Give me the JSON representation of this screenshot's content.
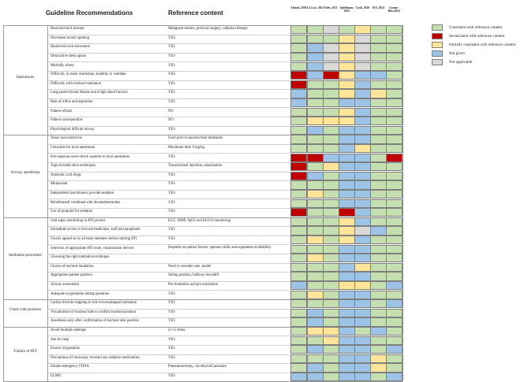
{
  "headers": {
    "guideline": "Guideline Recommendations",
    "reference": "Reference content",
    "authors": [
      "Ahmed, 2020",
      "J.A.Law, 2021",
      "Faley, 2021",
      "Apfelbaum, 2022",
      "Cook, 2020",
      "JSA, 2014",
      "Gomez-Rios,2024"
    ]
  },
  "colors": {
    "C": "#c6dfb1",
    "I": "#c00000",
    "P": "#ffe599",
    "N": "#9dc3e6",
    "A": "#d9d9d9"
  },
  "legend": [
    {
      "code": "C",
      "label": "Consistent with reference content"
    },
    {
      "code": "I",
      "label": "Inconsistent with reference content"
    },
    {
      "code": "P",
      "label": "Partially consistent with reference content"
    },
    {
      "code": "N",
      "label": "Not given"
    },
    {
      "code": "A",
      "label": "Not applicable"
    }
  ],
  "sections": [
    {
      "name": "Indications",
      "rows": [
        {
          "rec": "Head and neck disease",
          "ref": "Malignant tumors, previous surgery, radiation therapy",
          "cells": "CCACPCC"
        },
        {
          "rec": "Decreased mouth opening",
          "ref": "YES",
          "cells": "CCCPACC"
        },
        {
          "rec": "Restricted neck movement",
          "ref": "YES",
          "cells": "CNAPACC"
        },
        {
          "rec": "Obstructive sleep apnea",
          "ref": "YES",
          "cells": "CNAPACC"
        },
        {
          "rec": "Morbidly obese",
          "ref": "YES",
          "cells": "CNAPACC"
        },
        {
          "rec": "Difficulty in mask ventilation, inability to ventilate",
          "ref": "YES",
          "cells": "INIPNNC"
        },
        {
          "rec": "Difficulty with tracheal intubation",
          "ref": "YES",
          "cells": "ICCPNCC"
        },
        {
          "rec": "Lung parenchymal disease and a high shunt fraction",
          "ref": "YES",
          "cells": "NCCPNPC"
        },
        {
          "rec": "Risk of reflux and aspiration",
          "ref": "YES",
          "cells": "NCCNNCC"
        },
        {
          "rec": "Patient refusal",
          "ref": "NO",
          "cells": "CCCPNCC"
        },
        {
          "rec": "Patient uncooperative",
          "ref": "NO",
          "cells": "CPPPNCC"
        },
        {
          "rec": "Physiological difficult airway",
          "ref": "YES",
          "cells": "CNCNNCC"
        }
      ]
    },
    {
      "name": "Airway anesthesia",
      "rows": [
        {
          "rec": "Nasal vasoconstrictor",
          "ref": "Used prior to nasotracheal intubation",
          "cells": "CCCNNCC"
        },
        {
          "rec": "Lidocaine for local anesthesia",
          "ref": "Maximum dose 9 mg/kg",
          "cells": "CCCNPCC"
        },
        {
          "rec": "Percutaneous nerve block superior to local anesthesia",
          "ref": "YES",
          "cells": "IINNNCI"
        },
        {
          "rec": "Topical medication techniques",
          "ref": "Transtracheal injection, nebulization",
          "cells": "ICPNNCC"
        },
        {
          "rec": "Antisialic acid drugs",
          "ref": "YES",
          "cells": "INCNNCC"
        },
        {
          "rec": "Midazolam",
          "ref": "YES",
          "cells": "CCCNNCC"
        },
        {
          "rec": "Independent practitioners provide sedation",
          "ref": "YES",
          "cells": "CPCNNCC"
        },
        {
          "rec": "Remifentanil combined with dexmedetomidine",
          "ref": "YES",
          "cells": "CCCNNCC"
        },
        {
          "rec": "Use of propofol for sedation",
          "ref": "YES",
          "cells": "ICCINCC"
        }
      ]
    },
    {
      "name": "Intubation procedure",
      "rows": [
        {
          "rec": "vital signs monitoring in ATI process",
          "ref": "ECG, NIBP, SpO2 and EtCO2 monitoring",
          "cells": "CCCPNCC"
        },
        {
          "rec": "Immediate access to first-aid medicines, staff and equipment",
          "ref": "YES",
          "cells": "CCCPANC"
        },
        {
          "rec": "Clearly agreed to by all team members before starting ATI",
          "ref": "YES",
          "cells": "CPCPNCC"
        },
        {
          "rec": "Selection of appropriate ATI route, visualization devices",
          "ref": "Depends on patient factors, operator skills and equipment availability.",
          "cells": "CCCNNCC"
        },
        {
          "rec": "Choosing the right intubation technique",
          "ref": "",
          "cells": "CPCNNCC"
        },
        {
          "rec": "Choice of tracheal intubation",
          "ref": "Need to consider size, model",
          "cells": "CCCNPCC"
        },
        {
          "rec": "Appropriate patient position",
          "ref": "Sitting position, halfway downhill",
          "cells": "CCCNNCC"
        },
        {
          "rec": "Airway assessment",
          "ref": "Pre-intubation and pre-extubation",
          "cells": "NCCPPCN"
        },
        {
          "rec": "Adequate oxygenation during operation",
          "ref": "YES",
          "cells": "CPCNNCC"
        }
      ]
    },
    {
      "name": "Check tube position",
      "rows": [
        {
          "rec": "Carbon dioxide mapping to rule out esophageal intubation",
          "ref": "YES",
          "cells": "CCCNNCN"
        },
        {
          "rec": "Visualization of tracheal tube to confirm tracheal position",
          "ref": "YES",
          "cells": "CNCNNCC"
        },
        {
          "rec": "Anesthesia only after confirmation of tracheal tube position",
          "ref": "YES",
          "cells": "CNCNNCC"
        }
      ]
    },
    {
      "name": "Failure of ATI",
      "rows": [
        {
          "rec": "Avoid multiple attempts",
          "ref": "(3+1) times",
          "cells": "CPPNCNC"
        },
        {
          "rec": "Ask for help",
          "ref": "YES",
          "cells": "CCPNNCC"
        },
        {
          "rec": "Ensure oxygenation",
          "ref": "YES",
          "cells": "CNCNNCN"
        },
        {
          "rec": "Discontinue (if necessary, reverse) any sedative medications",
          "ref": "YES",
          "cells": "CCCNNPC"
        },
        {
          "rec": "Initiate emergency FONA",
          "ref": "Pneumonectomy, cricothyroid puncture",
          "cells": "CNCNNPC"
        },
        {
          "rec": "ECMO",
          "ref": "YES",
          "cells": "NNCNNCN"
        }
      ]
    }
  ]
}
